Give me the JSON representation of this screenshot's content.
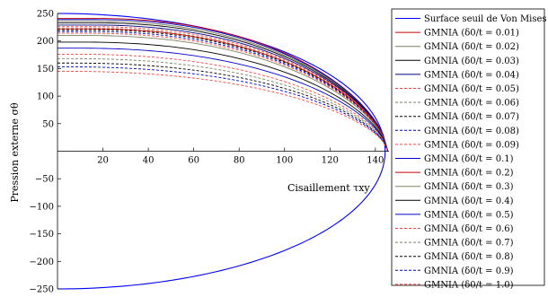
{
  "chart_data": {
    "type": "line",
    "xlabel": "Cisaillement τxy",
    "ylabel": "Pression externe σθ",
    "xlim": [
      0,
      146
    ],
    "ylim": [
      -250,
      250
    ],
    "xticks": [
      20,
      40,
      60,
      80,
      100,
      120,
      140
    ],
    "yticks": [
      -250,
      -200,
      -150,
      -100,
      -50,
      50,
      100,
      150,
      200,
      250
    ],
    "legend_position": "right-outside",
    "von_mises": {
      "name": "Surface seuil de Von Mises",
      "color": "#0000ff",
      "tau_max": 144.3,
      "sigma_max": 250
    },
    "series": [
      {
        "name": "GMNIA (δ0/t = 0.01)",
        "color": "#cc0000",
        "dash": "solid",
        "y0": 241
      },
      {
        "name": "GMNIA (δ0/t = 0.02)",
        "color": "#808060",
        "dash": "solid",
        "y0": 236
      },
      {
        "name": "GMNIA (δ0/t = 0.03)",
        "color": "#000000",
        "dash": "solid",
        "y0": 233
      },
      {
        "name": "GMNIA (δ0/t = 0.04)",
        "color": "#000080",
        "dash": "solid",
        "y0": 229
      },
      {
        "name": "GMNIA (δ0/t = 0.05)",
        "color": "#ff4040",
        "dash": "dashed",
        "y0": 226
      },
      {
        "name": "GMNIA (δ0/t = 0.06)",
        "color": "#808060",
        "dash": "dashed",
        "y0": 223
      },
      {
        "name": "GMNIA (δ0/t = 0.07)",
        "color": "#000000",
        "dash": "dashed",
        "y0": 220
      },
      {
        "name": "GMNIA (δ0/t = 0.08)",
        "color": "#0000cc",
        "dash": "dashed",
        "y0": 217
      },
      {
        "name": "GMNIA (δ0/t = 0.09)",
        "color": "#ff4040",
        "dash": "dashed",
        "y0": 214
      },
      {
        "name": "GMNIA (δ0/t = 0.1)",
        "color": "#0000cc",
        "dash": "solid",
        "y0": 239
      },
      {
        "name": "GMNIA (δ0/t = 0.2)",
        "color": "#cc0000",
        "dash": "solid",
        "y0": 222
      },
      {
        "name": "GMNIA (δ0/t = 0.3)",
        "color": "#808060",
        "dash": "solid",
        "y0": 210
      },
      {
        "name": "GMNIA (δ0/t = 0.4)",
        "color": "#000000",
        "dash": "solid",
        "y0": 198
      },
      {
        "name": "GMNIA (δ0/t = 0.5)",
        "color": "#0000cc",
        "dash": "solid",
        "y0": 187
      },
      {
        "name": "GMNIA (δ0/t = 0.6)",
        "color": "#ff4040",
        "dash": "dashed",
        "y0": 176
      },
      {
        "name": "GMNIA (δ0/t = 0.7)",
        "color": "#808060",
        "dash": "dashed",
        "y0": 168
      },
      {
        "name": "GMNIA (δ0/t = 0.8)",
        "color": "#000000",
        "dash": "dashed",
        "y0": 160
      },
      {
        "name": "GMNIA (δ0/t = 0.9)",
        "color": "#0000cc",
        "dash": "dashed",
        "y0": 153
      },
      {
        "name": "GMNIA (δ0/t = 1.0)",
        "color": "#ff4040",
        "dash": "dashed",
        "y0": 145
      }
    ]
  }
}
